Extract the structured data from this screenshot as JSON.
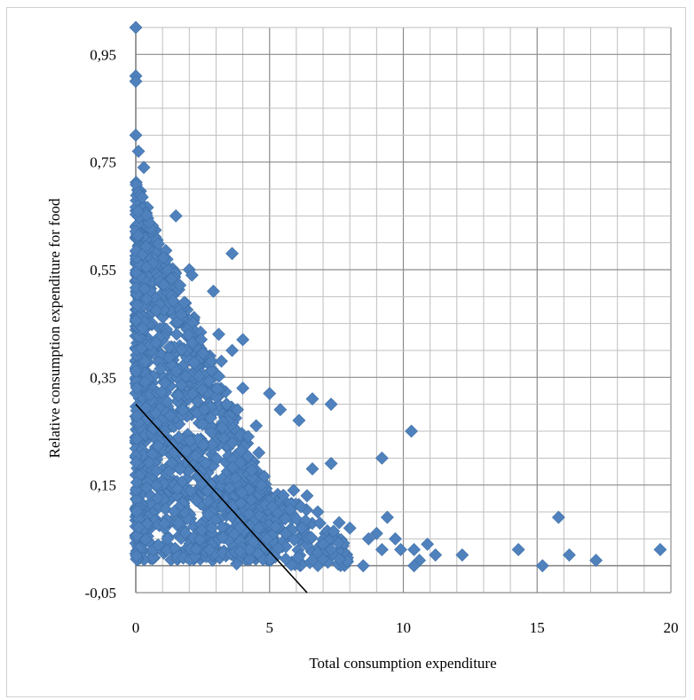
{
  "chart_data": {
    "type": "scatter",
    "title": "",
    "xlabel": "Total consumption expenditure",
    "ylabel": "Relative consumption expenditure  for food",
    "xlim": [
      0,
      20
    ],
    "ylim": [
      -0.05,
      1.0
    ],
    "x_ticks": [
      "0",
      "5",
      "10",
      "15",
      "20"
    ],
    "x_tick_values": [
      0,
      5,
      10,
      15,
      20
    ],
    "y_ticks": [
      "-0,05",
      "0,15",
      "0,35",
      "0,55",
      "0,75",
      "0,95"
    ],
    "y_tick_values": [
      -0.05,
      0.15,
      0.35,
      0.55,
      0.75,
      0.95
    ],
    "grid": true,
    "legend": "none",
    "marker_color": "#4f81bd",
    "marker_shape": "diamond",
    "trend_line": {
      "color": "#000000",
      "points": [
        [
          0,
          0.3
        ],
        [
          6.4,
          -0.05
        ]
      ]
    },
    "series": [
      {
        "points": [
          [
            0,
            1.0
          ],
          [
            0,
            0.91
          ],
          [
            0,
            0.9
          ],
          [
            0,
            0.8
          ],
          [
            0.1,
            0.77
          ],
          [
            0.3,
            0.74
          ],
          [
            1.5,
            0.65
          ],
          [
            3.6,
            0.58
          ],
          [
            2.0,
            0.55
          ],
          [
            2.1,
            0.54
          ],
          [
            2.9,
            0.51
          ],
          [
            4.0,
            0.42
          ],
          [
            3.6,
            0.4
          ],
          [
            5.0,
            0.32
          ],
          [
            5.4,
            0.29
          ],
          [
            6.1,
            0.27
          ],
          [
            6.6,
            0.31
          ],
          [
            7.3,
            0.3
          ],
          [
            10.3,
            0.25
          ],
          [
            9.2,
            0.2
          ],
          [
            7.3,
            0.19
          ],
          [
            6.6,
            0.18
          ],
          [
            9.4,
            0.09
          ],
          [
            15.8,
            0.09
          ],
          [
            14.3,
            0.03
          ],
          [
            16.2,
            0.02
          ],
          [
            17.2,
            0.01
          ],
          [
            19.6,
            0.03
          ],
          [
            15.2,
            0.0
          ],
          [
            12.2,
            0.02
          ],
          [
            11.2,
            0.02
          ],
          [
            10.9,
            0.04
          ],
          [
            10.4,
            0.03
          ],
          [
            10.6,
            0.01
          ],
          [
            10.4,
            0.0
          ],
          [
            8.5,
            0.0
          ],
          [
            9.7,
            0.05
          ],
          [
            9.9,
            0.03
          ],
          [
            9.0,
            0.06
          ],
          [
            9.2,
            0.03
          ],
          [
            8.7,
            0.05
          ],
          [
            8.0,
            0.07
          ],
          [
            7.6,
            0.08
          ],
          [
            7.3,
            0.03
          ],
          [
            6.8,
            0.1
          ],
          [
            7.0,
            0.04
          ],
          [
            6.4,
            0.13
          ],
          [
            6.2,
            0.07
          ],
          [
            5.9,
            0.14
          ],
          [
            5.6,
            0.06
          ],
          [
            5.1,
            0.11
          ],
          [
            4.7,
            0.15
          ],
          [
            4.6,
            0.21
          ],
          [
            4.9,
            0.05
          ],
          [
            4.5,
            0.26
          ],
          [
            4.2,
            0.24
          ],
          [
            4.0,
            0.33
          ],
          [
            3.8,
            0.29
          ],
          [
            3.4,
            0.3
          ],
          [
            3.1,
            0.43
          ],
          [
            3.2,
            0.38
          ]
        ]
      }
    ]
  }
}
